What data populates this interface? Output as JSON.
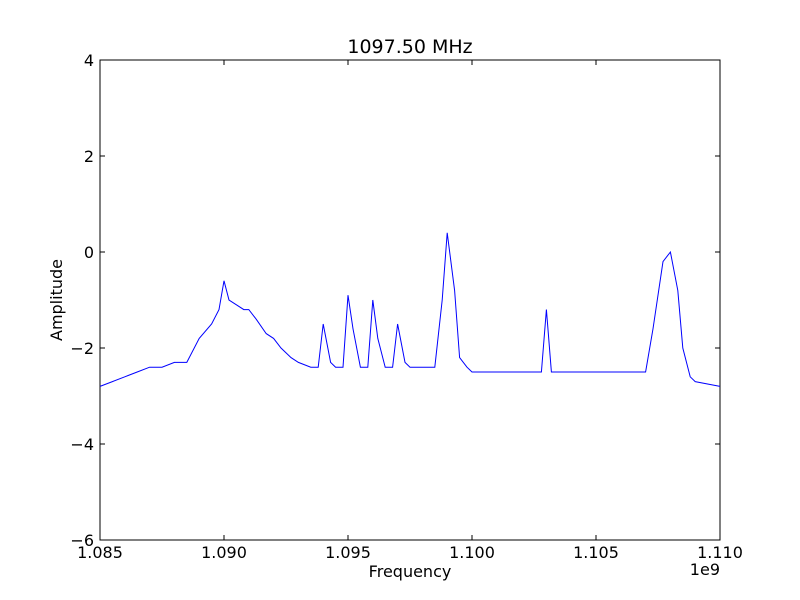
{
  "chart_data": {
    "type": "line",
    "title": "1097.50 MHz",
    "xlabel": "Frequency",
    "ylabel": "Amplitude",
    "x_offset_label": "1e9",
    "xlim": [
      1.085,
      1.11
    ],
    "ylim": [
      -6,
      4
    ],
    "x_ticks": [
      1.085,
      1.09,
      1.095,
      1.1,
      1.105,
      1.11
    ],
    "x_tick_labels": [
      "1.085",
      "1.090",
      "1.095",
      "1.100",
      "1.105",
      "1.110"
    ],
    "y_ticks": [
      -6,
      -4,
      -2,
      0,
      2,
      4
    ],
    "y_tick_labels": [
      "−6",
      "−4",
      "−2",
      "0",
      "2",
      "4"
    ],
    "grid": false,
    "line_color": "#0000ff",
    "series": [
      {
        "x": [
          1.085,
          1.0855,
          1.086,
          1.0865,
          1.087,
          1.0875,
          1.088,
          1.0885,
          1.089,
          1.0895,
          1.0898,
          1.09,
          1.0902,
          1.0905,
          1.0908,
          1.091,
          1.0913,
          1.0917,
          1.092,
          1.0923,
          1.0927,
          1.093,
          1.0935,
          1.0938,
          1.094,
          1.0943,
          1.0945,
          1.0948,
          1.095,
          1.0952,
          1.0955,
          1.0958,
          1.096,
          1.0962,
          1.0965,
          1.0968,
          1.097,
          1.0973,
          1.0975,
          1.098,
          1.0985,
          1.0988,
          1.099,
          1.0993,
          1.0995,
          1.0998,
          1.1,
          1.101,
          1.102,
          1.1028,
          1.103,
          1.1032,
          1.104,
          1.105,
          1.106,
          1.107,
          1.1073,
          1.1077,
          1.108,
          1.1083,
          1.1085,
          1.1088,
          1.109,
          1.11
        ],
        "y": [
          -2.8,
          -2.7,
          -2.6,
          -2.5,
          -2.4,
          -2.4,
          -2.3,
          -2.3,
          -1.8,
          -1.5,
          -1.2,
          -0.6,
          -1.0,
          -1.1,
          -1.2,
          -1.2,
          -1.4,
          -1.7,
          -1.8,
          -2.0,
          -2.2,
          -2.3,
          -2.4,
          -2.4,
          -1.5,
          -2.3,
          -2.4,
          -2.4,
          -0.9,
          -1.6,
          -2.4,
          -2.4,
          -1.0,
          -1.8,
          -2.4,
          -2.4,
          -1.5,
          -2.3,
          -2.4,
          -2.4,
          -2.4,
          -1.0,
          0.4,
          -0.8,
          -2.2,
          -2.4,
          -2.5,
          -2.5,
          -2.5,
          -2.5,
          -1.2,
          -2.5,
          -2.5,
          -2.5,
          -2.5,
          -2.5,
          -1.6,
          -0.2,
          0.0,
          -0.8,
          -2.0,
          -2.6,
          -2.7,
          -2.8
        ]
      }
    ]
  }
}
